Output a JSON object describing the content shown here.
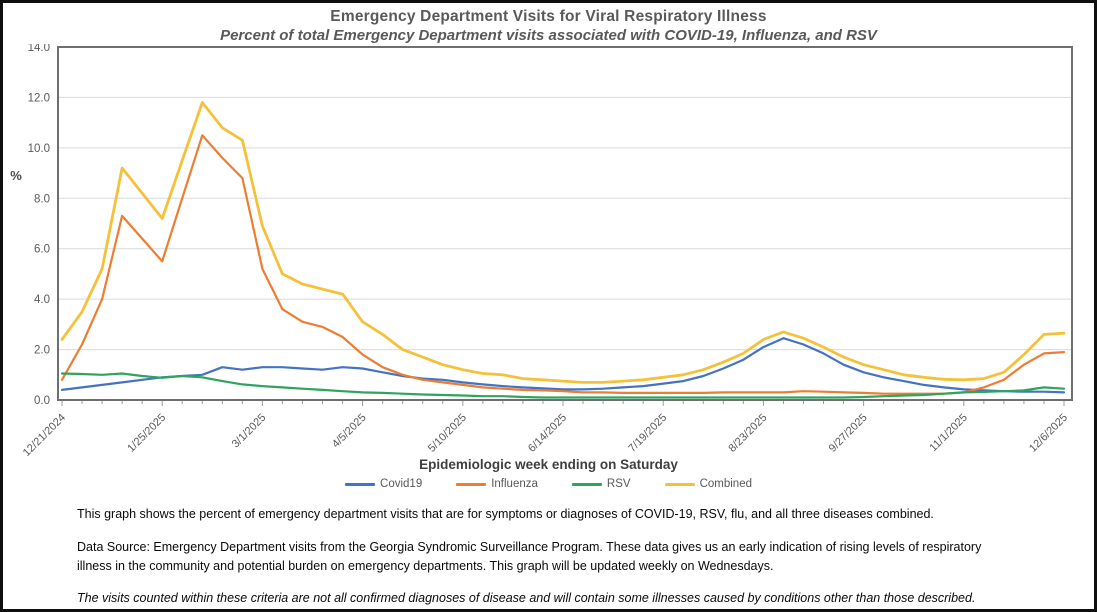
{
  "header": {
    "title": "Emergency Department Visits for Viral Respiratory Illness",
    "subtitle": "Percent of total Emergency Department visits associated with COVID-19, Influenza, and RSV"
  },
  "chart_data": {
    "type": "line",
    "title": "Emergency Department Visits for Viral Respiratory Illness",
    "subtitle": "Percent of total Emergency Department visits associated with COVID-19, Influenza, and RSV",
    "xlabel": "Epidemiologic week ending on Saturday",
    "ylabel": "%",
    "ylim": [
      0,
      14
    ],
    "ytick_step": 2.0,
    "ytick_labels": [
      "0.0",
      "2.0",
      "4.0",
      "6.0",
      "8.0",
      "10.0",
      "12.0",
      "14.0"
    ],
    "grid": "horizontal",
    "legend_position": "bottom",
    "x_label_every": 5,
    "shown_x_tick_labels": [
      "12/21/2024",
      "1/25/2025",
      "3/1/2025",
      "4/5/2025",
      "5/10/2025",
      "6/14/2025",
      "7/19/2025",
      "8/23/2025",
      "9/27/2025",
      "11/1/2025",
      "12/6/2025"
    ],
    "categories": [
      "12/21/2024",
      "12/28/2024",
      "1/4/2025",
      "1/11/2025",
      "1/18/2025",
      "1/25/2025",
      "2/1/2025",
      "2/8/2025",
      "2/15/2025",
      "2/22/2025",
      "3/1/2025",
      "3/8/2025",
      "3/15/2025",
      "3/22/2025",
      "3/29/2025",
      "4/5/2025",
      "4/12/2025",
      "4/19/2025",
      "4/26/2025",
      "5/3/2025",
      "5/10/2025",
      "5/17/2025",
      "5/24/2025",
      "5/31/2025",
      "6/7/2025",
      "6/14/2025",
      "6/21/2025",
      "6/28/2025",
      "7/5/2025",
      "7/12/2025",
      "7/19/2025",
      "7/26/2025",
      "8/2/2025",
      "8/9/2025",
      "8/16/2025",
      "8/23/2025",
      "8/30/2025",
      "9/6/2025",
      "9/13/2025",
      "9/20/2025",
      "9/27/2025",
      "10/4/2025",
      "10/11/2025",
      "10/18/2025",
      "10/25/2025",
      "11/1/2025",
      "11/8/2025",
      "11/15/2025",
      "11/22/2025",
      "11/29/2025",
      "12/6/2025"
    ],
    "series": [
      {
        "name": "Covid19",
        "color": "#4472C4",
        "values": [
          0.4,
          0.5,
          0.6,
          0.7,
          0.8,
          0.9,
          0.95,
          1.0,
          1.3,
          1.2,
          1.3,
          1.3,
          1.25,
          1.2,
          1.3,
          1.25,
          1.1,
          0.95,
          0.85,
          0.8,
          0.7,
          0.62,
          0.55,
          0.5,
          0.46,
          0.42,
          0.42,
          0.45,
          0.5,
          0.55,
          0.65,
          0.75,
          0.95,
          1.25,
          1.6,
          2.1,
          2.45,
          2.2,
          1.85,
          1.4,
          1.1,
          0.9,
          0.75,
          0.6,
          0.5,
          0.42,
          0.38,
          0.35,
          0.33,
          0.33,
          0.3
        ]
      },
      {
        "name": "Influenza",
        "color": "#ED7D31",
        "values": [
          0.8,
          2.2,
          4.0,
          7.3,
          6.4,
          5.5,
          8.0,
          10.5,
          9.6,
          8.8,
          5.2,
          3.6,
          3.1,
          2.9,
          2.5,
          1.8,
          1.3,
          1.0,
          0.8,
          0.7,
          0.6,
          0.5,
          0.45,
          0.4,
          0.38,
          0.35,
          0.3,
          0.3,
          0.28,
          0.28,
          0.28,
          0.28,
          0.28,
          0.3,
          0.3,
          0.3,
          0.3,
          0.35,
          0.33,
          0.3,
          0.28,
          0.25,
          0.25,
          0.25,
          0.25,
          0.3,
          0.5,
          0.8,
          1.4,
          1.85,
          1.9
        ]
      },
      {
        "name": "RSV",
        "color": "#2FA45C",
        "values": [
          1.05,
          1.03,
          1.0,
          1.05,
          0.95,
          0.88,
          0.95,
          0.9,
          0.75,
          0.62,
          0.55,
          0.5,
          0.45,
          0.4,
          0.35,
          0.3,
          0.28,
          0.25,
          0.22,
          0.2,
          0.18,
          0.15,
          0.15,
          0.12,
          0.1,
          0.1,
          0.1,
          0.1,
          0.1,
          0.1,
          0.1,
          0.1,
          0.1,
          0.1,
          0.1,
          0.1,
          0.1,
          0.1,
          0.1,
          0.1,
          0.12,
          0.15,
          0.18,
          0.2,
          0.25,
          0.3,
          0.32,
          0.35,
          0.38,
          0.5,
          0.45
        ]
      },
      {
        "name": "Combined",
        "color": "#F5C13B",
        "values": [
          2.4,
          3.5,
          5.2,
          9.2,
          8.2,
          7.2,
          9.5,
          11.8,
          10.8,
          10.3,
          6.9,
          5.0,
          4.6,
          4.4,
          4.2,
          3.1,
          2.6,
          2.0,
          1.7,
          1.4,
          1.2,
          1.05,
          1.0,
          0.85,
          0.8,
          0.75,
          0.7,
          0.7,
          0.75,
          0.8,
          0.9,
          1.0,
          1.2,
          1.5,
          1.85,
          2.4,
          2.7,
          2.45,
          2.1,
          1.7,
          1.4,
          1.2,
          1.0,
          0.9,
          0.82,
          0.8,
          0.85,
          1.1,
          1.8,
          2.6,
          2.65
        ]
      }
    ],
    "style": {
      "gridline_color": "#d9d9d9",
      "plot_border_color": "#6f6f6f",
      "tick_label_color": "#595959",
      "axis_tick_color": "#9b9b9b"
    }
  },
  "footer": {
    "p1": "This graph shows the percent of emergency department visits that are for symptoms or diagnoses of COVID-19, RSV, flu, and all three diseases combined.",
    "p2": "Data Source: Emergency Department visits from the Georgia Syndromic Surveillance Program. These data gives us an early indication of rising levels of respiratory illness in the community and potential burden on emergency departments. This graph will be updated weekly on Wednesdays.",
    "p3": "The visits counted within these criteria are not all confirmed diagnoses of disease and will contain some illnesses caused by conditions other than those described."
  }
}
